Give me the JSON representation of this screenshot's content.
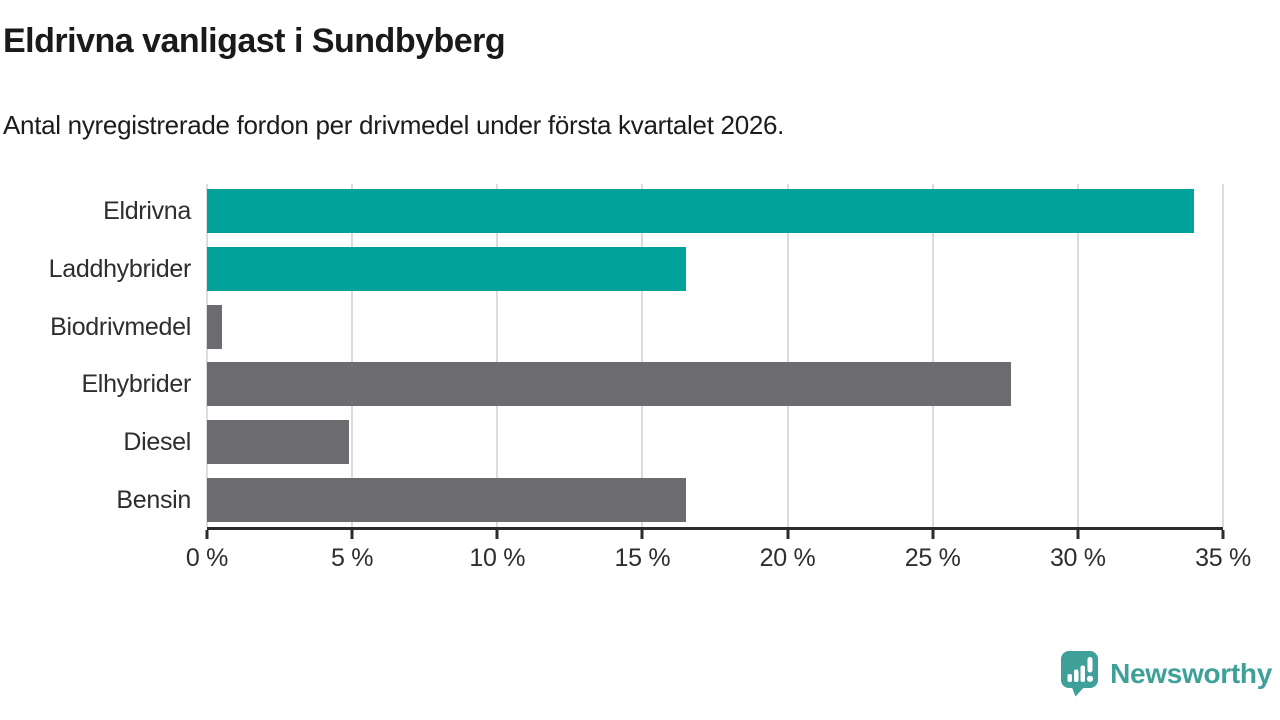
{
  "title": "Eldrivna vanligast i Sundbyberg",
  "subtitle": "Antal nyregistrerade fordon per drivmedel under första kvartalet 2026.",
  "branding": {
    "name": "Newsworthy",
    "icon": "newsworthy-logo-icon",
    "color": "#3fa099"
  },
  "colors": {
    "highlight": "#00a29a",
    "neutral": "#6c6b70",
    "gridline": "#dcdcdc",
    "axis": "#2b2b2b",
    "text": "#2e2e2e"
  },
  "chart_data": {
    "type": "bar",
    "orientation": "horizontal",
    "title": "Eldrivna vanligast i Sundbyberg",
    "subtitle": "Antal nyregistrerade fordon per drivmedel under första kvartalet 2026.",
    "categories": [
      "Eldrivna",
      "Laddhybrider",
      "Biodrivmedel",
      "Elhybrider",
      "Diesel",
      "Bensin"
    ],
    "values": [
      34,
      16.5,
      0.5,
      27.7,
      4.9,
      16.5
    ],
    "bar_color_keys": [
      "highlight",
      "highlight",
      "neutral",
      "neutral",
      "neutral",
      "neutral"
    ],
    "xlabel": "",
    "ylabel": "",
    "xlim": [
      0,
      35
    ],
    "x_ticks": [
      0,
      5,
      10,
      15,
      20,
      25,
      30,
      35
    ],
    "x_tick_suffix": " %",
    "grid": true,
    "legend": false
  }
}
